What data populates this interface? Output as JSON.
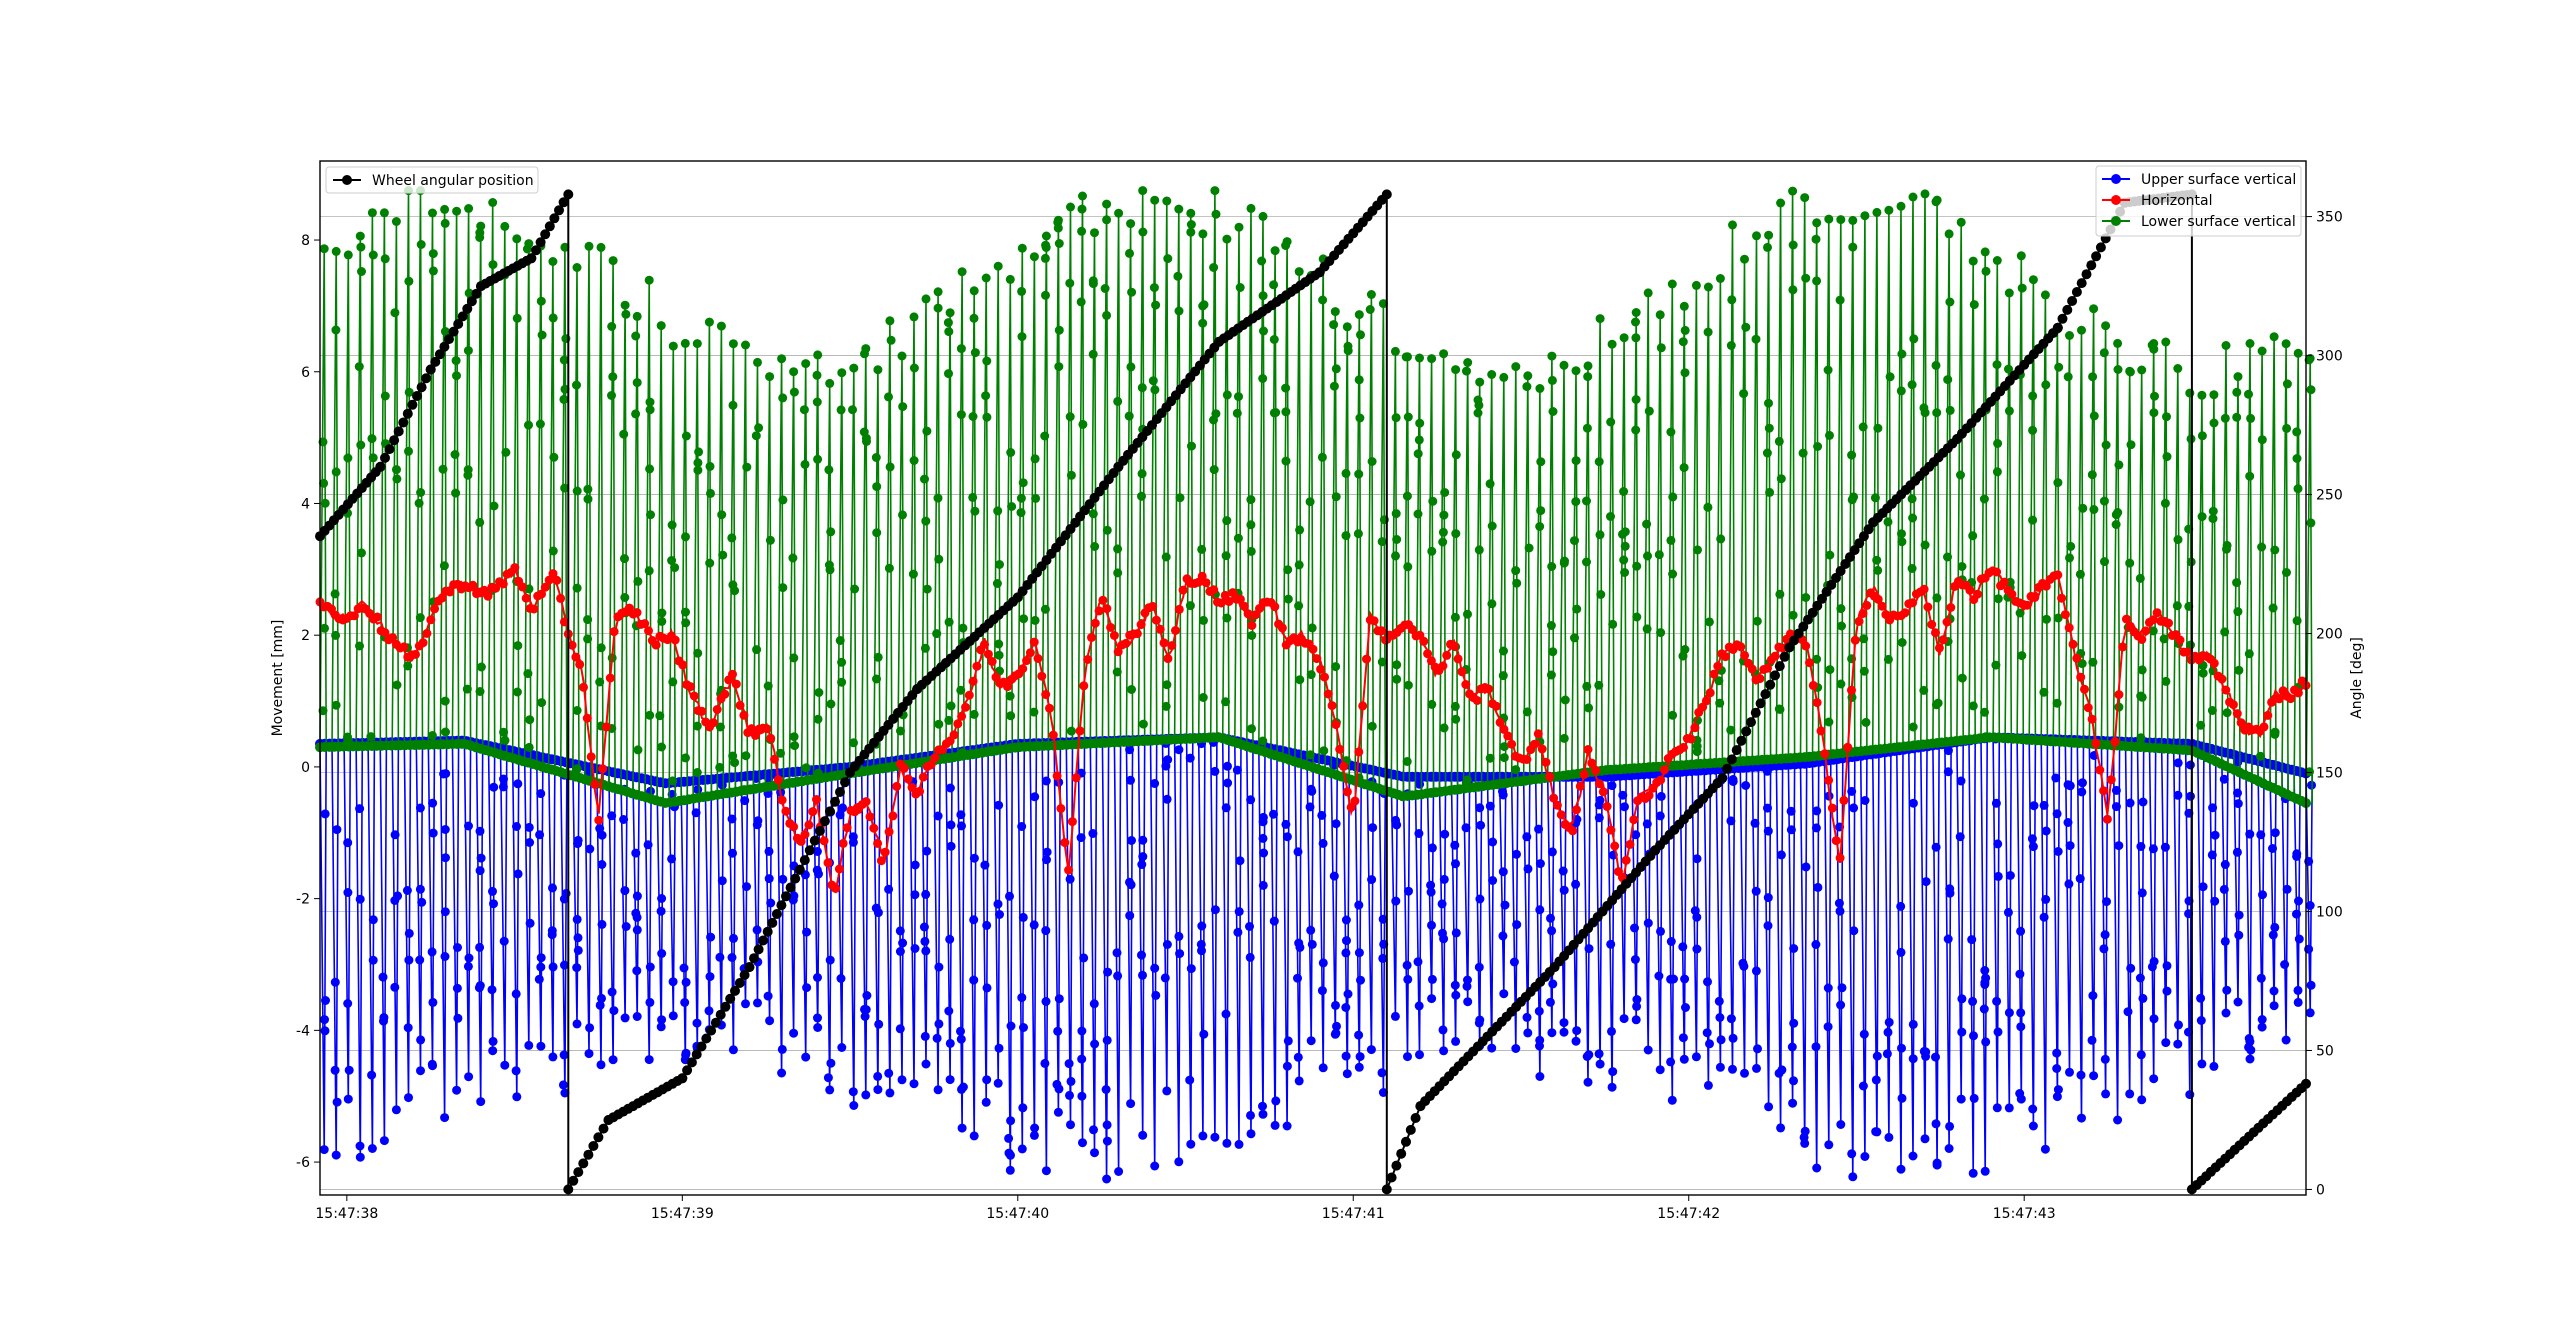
{
  "chart_data": {
    "type": "line",
    "xlabel": "",
    "ylabel": "Movement [mm]",
    "y2label": "Angle [deg]",
    "grid": true,
    "x_ticks": [
      "15:47:38",
      "15:47:39",
      "15:47:40",
      "15:47:41",
      "15:47:42",
      "15:47:43"
    ],
    "x_range_seconds_after_15_47_38": [
      -0.08,
      5.84
    ],
    "ylim": [
      -6.5,
      9.2
    ],
    "y_ticks": [
      -6,
      -4,
      -2,
      0,
      2,
      4,
      6,
      8
    ],
    "y2lim": [
      -2,
      370
    ],
    "y2_ticks": [
      0,
      50,
      100,
      150,
      200,
      250,
      300,
      350
    ],
    "legend_left": {
      "placement": "upper left",
      "entries": [
        "Wheel angular position"
      ]
    },
    "legend_right": {
      "placement": "upper right",
      "entries": [
        "Upper surface vertical",
        "Horizontal",
        "Lower surface vertical"
      ]
    },
    "series": [
      {
        "name": "Upper surface vertical",
        "axis": "left",
        "color": "#0000ff",
        "style": "oscillating, baseline about 0.4 mm dipping to about -0.2 mm, samples down to about -4.5 to -6.4 mm",
        "baseline_t": [
          -0.08,
          0.35,
          0.95,
          1.5,
          2.0,
          2.6,
          3.15,
          3.75,
          4.35,
          4.9,
          5.5,
          5.84
        ],
        "baseline_mm": [
          0.35,
          0.4,
          -0.25,
          0.0,
          0.35,
          0.45,
          -0.15,
          -0.15,
          0.05,
          0.45,
          0.35,
          -0.1
        ],
        "min_mm": -6.4
      },
      {
        "name": "Horizontal",
        "axis": "left",
        "color": "#ff0000",
        "t": [
          -0.08,
          0.0,
          0.05,
          0.12,
          0.2,
          0.28,
          0.35,
          0.42,
          0.5,
          0.55,
          0.62,
          0.66,
          0.7,
          0.75,
          0.8,
          0.85,
          0.92,
          0.97,
          1.02,
          1.08,
          1.15,
          1.2,
          1.26,
          1.3,
          1.35,
          1.4,
          1.45,
          1.5,
          1.55,
          1.6,
          1.65,
          1.7,
          1.75,
          1.8,
          1.85,
          1.9,
          1.95,
          2.0,
          2.05,
          2.1,
          2.15,
          2.2,
          2.25,
          2.3,
          2.35,
          2.4,
          2.45,
          2.5,
          2.55,
          2.6,
          2.65,
          2.7,
          2.75,
          2.8,
          2.85,
          2.9,
          2.95,
          3.0,
          3.05,
          3.1,
          3.15,
          3.2,
          3.25,
          3.3,
          3.35,
          3.4,
          3.45,
          3.5,
          3.55,
          3.6,
          3.65,
          3.7,
          3.75,
          3.8,
          3.85,
          3.9,
          3.95,
          4.0,
          4.05,
          4.1,
          4.15,
          4.2,
          4.25,
          4.3,
          4.35,
          4.4,
          4.45,
          4.5,
          4.55,
          4.6,
          4.65,
          4.7,
          4.75,
          4.8,
          4.85,
          4.9,
          4.95,
          5.0,
          5.05,
          5.1,
          5.15,
          5.2,
          5.25,
          5.3,
          5.35,
          5.4,
          5.45,
          5.5,
          5.55,
          5.6,
          5.65,
          5.7,
          5.75,
          5.8,
          5.84
        ],
        "values": [
          2.5,
          2.2,
          2.5,
          2.0,
          1.6,
          2.6,
          2.8,
          2.6,
          3.0,
          2.4,
          2.9,
          2.0,
          1.5,
          -0.8,
          2.2,
          2.4,
          1.9,
          2.0,
          1.2,
          0.6,
          1.4,
          0.5,
          0.6,
          -0.6,
          -1.2,
          -0.5,
          -2.0,
          -0.7,
          -0.5,
          -1.5,
          0.0,
          -0.4,
          0.2,
          0.4,
          1.0,
          1.9,
          1.2,
          1.4,
          1.9,
          0.8,
          -1.7,
          1.5,
          2.6,
          1.8,
          2.0,
          2.5,
          1.6,
          2.8,
          2.9,
          2.5,
          2.6,
          2.2,
          2.6,
          1.9,
          2.0,
          1.6,
          0.6,
          -0.8,
          2.3,
          1.9,
          2.2,
          2.0,
          1.4,
          1.9,
          1.0,
          1.2,
          0.6,
          0.0,
          0.5,
          -0.5,
          -1.0,
          0.2,
          -0.4,
          -1.8,
          -0.5,
          -0.3,
          0.2,
          0.4,
          1.0,
          1.7,
          1.9,
          1.3,
          1.6,
          2.0,
          1.9,
          0.4,
          -1.5,
          2.2,
          2.7,
          2.2,
          2.4,
          2.7,
          1.7,
          2.9,
          2.6,
          3.0,
          2.7,
          2.4,
          2.7,
          2.9,
          1.7,
          0.8,
          -0.8,
          2.2,
          2.0,
          2.3,
          2.0,
          1.6,
          1.7,
          1.2,
          0.6,
          0.5,
          1.1,
          1.1,
          1.3
        ]
      },
      {
        "name": "Lower surface vertical",
        "axis": "left",
        "color": "#008000",
        "style": "oscillating, baseline about 0.3 mm dipping to about -0.55 mm, samples up to about 6 to 8.8 mm",
        "baseline_t": [
          -0.08,
          0.35,
          0.95,
          1.5,
          2.0,
          2.6,
          3.15,
          3.75,
          4.35,
          4.9,
          5.5,
          5.84
        ],
        "baseline_mm": [
          0.3,
          0.35,
          -0.55,
          -0.1,
          0.3,
          0.45,
          -0.45,
          -0.05,
          0.15,
          0.45,
          0.25,
          -0.55
        ],
        "max_mm": 8.75
      },
      {
        "name": "Wheel angular position",
        "axis": "right",
        "color": "#000000",
        "t": [
          -0.08,
          0.1,
          0.25,
          0.4,
          0.55,
          0.66,
          0.66,
          0.78,
          1.0,
          1.2,
          1.35,
          1.5,
          1.7,
          2.0,
          2.3,
          2.6,
          2.9,
          3.1,
          3.1,
          3.2,
          3.6,
          3.9,
          4.1,
          4.3,
          4.55,
          4.8,
          5.1,
          5.3,
          5.5,
          5.5,
          5.84
        ],
        "values": [
          235,
          260,
          295,
          325,
          335,
          358,
          0,
          25,
          40,
          80,
          115,
          150,
          180,
          213,
          260,
          305,
          330,
          358,
          0,
          30,
          80,
          122,
          148,
          195,
          240,
          270,
          310,
          355,
          358,
          0,
          38
        ]
      }
    ]
  }
}
